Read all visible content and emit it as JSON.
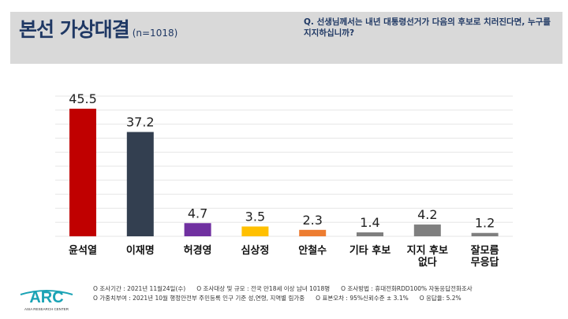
{
  "header": {
    "title": "본선 가상대결",
    "sample": "(n=1018)",
    "question": "Q. 선생님께서는 내년 대통령선거가 다음의 후보로 치러진다면, 누구를 지지하십니까?"
  },
  "chart_data": {
    "type": "bar",
    "categories": [
      "윤석열",
      "이재명",
      "허경영",
      "심상정",
      "안철수",
      "기타 후보",
      "지지 후보 없다",
      "잘모름 무응답"
    ],
    "category_lines": [
      [
        "윤석열"
      ],
      [
        "이재명"
      ],
      [
        "허경영"
      ],
      [
        "심상정"
      ],
      [
        "안철수"
      ],
      [
        "기타 후보"
      ],
      [
        "지지 후보",
        "없다"
      ],
      [
        "잘모름",
        "무응답"
      ]
    ],
    "values": [
      45.5,
      37.2,
      4.7,
      3.5,
      2.3,
      1.4,
      4.2,
      1.2
    ],
    "labels": [
      "45.5",
      "37.2",
      "4.7",
      "3.5",
      "2.3",
      "1.4",
      "4.2",
      "1.2"
    ],
    "colors": [
      "#c00000",
      "#333f50",
      "#7030a0",
      "#ffc000",
      "#ed7d31",
      "#7f7f7f",
      "#7f7f7f",
      "#7f7f7f"
    ],
    "ylim": [
      0,
      50
    ],
    "grid": true,
    "grid_step": 5
  },
  "footer": {
    "line1": [
      "O 조사기간 : 2021년 11월24일(수)",
      "O 조사대상 및 규모 : 전국 만18세 이상 남녀 1018명",
      "O 조사방법 : 휴대전화RDD100% 자동응답전화조사"
    ],
    "line2": [
      "O 가중치부여 : 2021년 10월 행정안전부 주민등록 인구 기준 성,연령, 지역별 림가중",
      "O 표본오차 : 95%신뢰수준 ± 3.1%",
      "O 응답율: 5.2%"
    ]
  },
  "logo": {
    "text": "ARC",
    "subtitle": "ASIA RESEARCH CENTER",
    "color": "#1aa3b5"
  }
}
